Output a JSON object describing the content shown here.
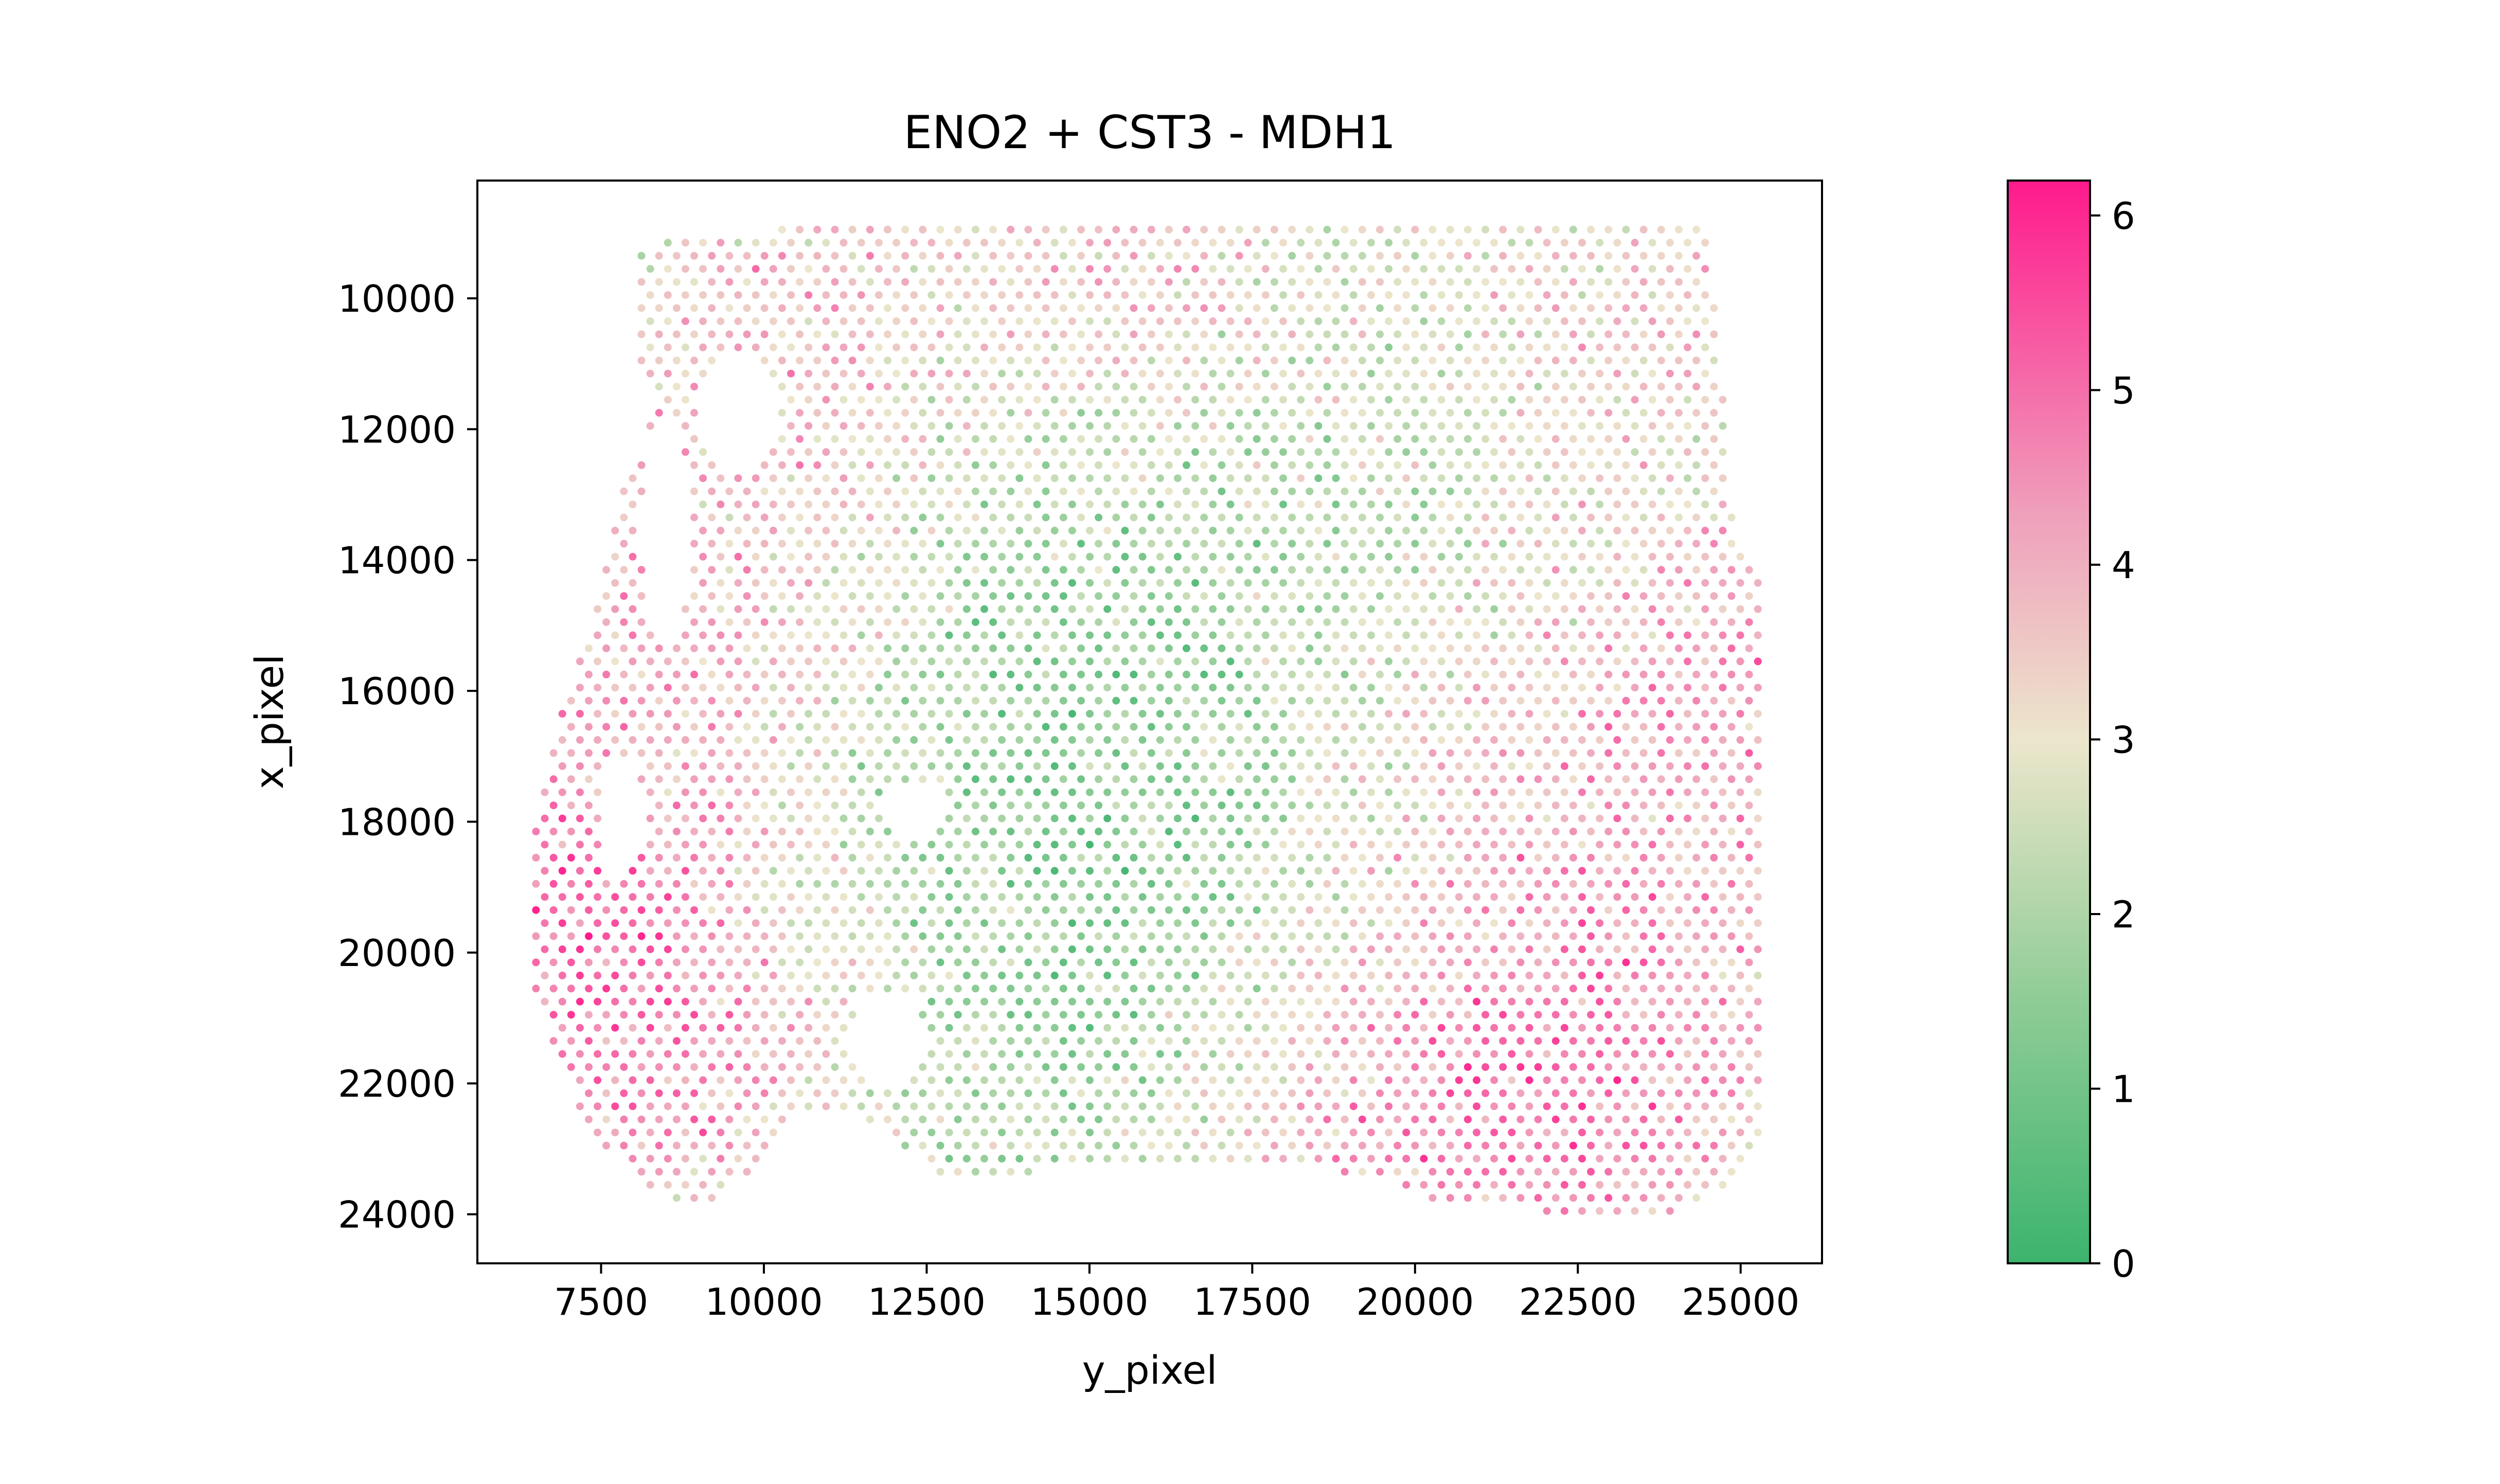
{
  "chart_data": {
    "type": "scatter",
    "title": "ENO2 + CST3 - MDH1",
    "xlabel": "y_pixel",
    "ylabel": "x_pixel",
    "xlim": [
      5600,
      26250
    ],
    "ylim": [
      24750,
      8200
    ],
    "y_inverted": true,
    "xticks": [
      7500,
      10000,
      12500,
      15000,
      17500,
      20000,
      22500,
      25000
    ],
    "yticks": [
      10000,
      12000,
      14000,
      16000,
      18000,
      20000,
      22000,
      24000
    ],
    "xtick_labels": [
      "7500",
      "10000",
      "12500",
      "15000",
      "17500",
      "20000",
      "22500",
      "25000"
    ],
    "ytick_labels": [
      "10000",
      "12000",
      "14000",
      "16000",
      "18000",
      "20000",
      "22000",
      "24000"
    ],
    "grid": false,
    "spot_grid": {
      "x_step": 270,
      "y_step": 400,
      "row_offset": 135,
      "note": "spots form a hexagonal array covering the tissue region"
    },
    "tissue_outline": [
      [
        8100,
        9200
      ],
      [
        10200,
        8950
      ],
      [
        24500,
        8950
      ],
      [
        24900,
        13500
      ],
      [
        25300,
        14300
      ],
      [
        25300,
        23000
      ],
      [
        24900,
        23500
      ],
      [
        23700,
        24100
      ],
      [
        22800,
        24050
      ],
      [
        20200,
        23800
      ],
      [
        19500,
        23500
      ],
      [
        18500,
        23300
      ],
      [
        16000,
        23300
      ],
      [
        12600,
        23400
      ],
      [
        11700,
        22600
      ],
      [
        11000,
        22400
      ],
      [
        10400,
        22500
      ],
      [
        9900,
        23300
      ],
      [
        9100,
        23900
      ],
      [
        8100,
        23600
      ],
      [
        7200,
        22500
      ],
      [
        6500,
        20800
      ],
      [
        6500,
        18000
      ],
      [
        6900,
        16300
      ],
      [
        7400,
        14700
      ],
      [
        7700,
        13200
      ],
      [
        8400,
        11600
      ],
      [
        8000,
        11200
      ],
      [
        8000,
        10100
      ]
    ],
    "holes": [
      {
        "x": 9600,
        "y": 11800,
        "rx": 650,
        "ry": 900
      },
      {
        "x": 8500,
        "y": 13600,
        "rx": 400,
        "ry": 1700
      },
      {
        "x": 7800,
        "y": 17900,
        "rx": 350,
        "ry": 900
      },
      {
        "x": 12300,
        "y": 17800,
        "rx": 500,
        "ry": 450
      },
      {
        "x": 11900,
        "y": 21300,
        "rx": 600,
        "ry": 750
      }
    ],
    "hotspots": [
      {
        "x": 7000,
        "y": 19200,
        "r": 1900,
        "w": 1.9
      },
      {
        "x": 8900,
        "y": 14500,
        "r": 2300,
        "w": 1.0
      },
      {
        "x": 8800,
        "y": 22000,
        "r": 1700,
        "w": 1.2
      },
      {
        "x": 10800,
        "y": 10500,
        "r": 1900,
        "w": 0.9
      },
      {
        "x": 15800,
        "y": 10000,
        "r": 1700,
        "w": 0.9
      },
      {
        "x": 22600,
        "y": 18500,
        "r": 2600,
        "w": 1.2
      },
      {
        "x": 22500,
        "y": 22700,
        "r": 2300,
        "w": 1.4
      },
      {
        "x": 19000,
        "y": 22800,
        "r": 1900,
        "w": 1.0
      },
      {
        "x": 25000,
        "y": 15200,
        "r": 1300,
        "w": 1.0
      },
      {
        "x": 23000,
        "y": 10400,
        "r": 1600,
        "w": 0.7
      },
      {
        "x": 15500,
        "y": 18500,
        "r": 3000,
        "w": -1.3
      },
      {
        "x": 13800,
        "y": 14000,
        "r": 2500,
        "w": -0.8
      },
      {
        "x": 18500,
        "y": 12400,
        "r": 2200,
        "w": -0.6
      },
      {
        "x": 14300,
        "y": 22300,
        "r": 1800,
        "w": -0.6
      }
    ],
    "value_baseline": 2.9,
    "value_noise": 0.9,
    "colorbar": {
      "min": 0,
      "max": 6.2,
      "ticks": [
        0,
        1,
        2,
        3,
        4,
        5,
        6
      ],
      "tick_labels": [
        "0",
        "1",
        "2",
        "3",
        "4",
        "5",
        "6"
      ],
      "stops": [
        {
          "value": 0.0,
          "color": "#3cb46e"
        },
        {
          "value": 1.5,
          "color": "#8fcc96"
        },
        {
          "value": 3.0,
          "color": "#ece6cc"
        },
        {
          "value": 4.3,
          "color": "#ef9fbb"
        },
        {
          "value": 6.2,
          "color": "#ff1a8c"
        }
      ]
    }
  }
}
